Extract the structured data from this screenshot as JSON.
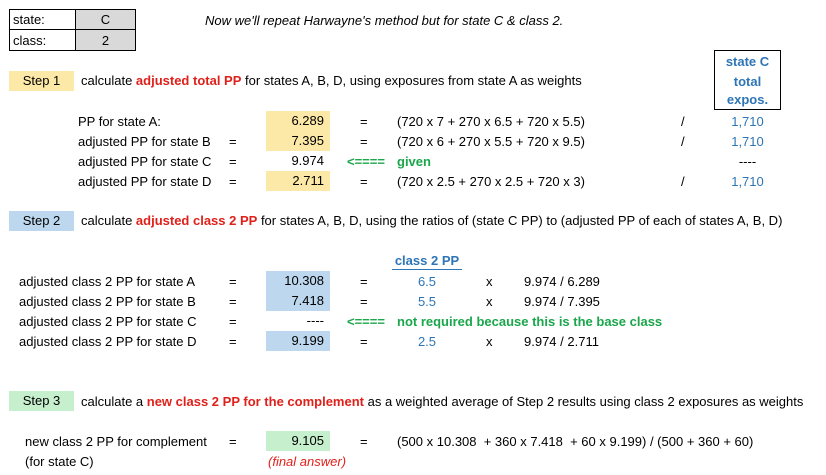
{
  "info_box": {
    "state_label": "state:",
    "state_value": "C",
    "class_label": "class:",
    "class_value": "2"
  },
  "intro": "Now we'll repeat Harwayne's method but for state C & class 2.",
  "exposure_header": [
    "state C",
    "total",
    "expos."
  ],
  "step1": {
    "label": "Step 1",
    "desc_pre": "calculate ",
    "desc_bold": "adjusted total PP",
    "desc_post": " for states A, B, D, using exposures from state A as weights",
    "rows": [
      {
        "label": "PP for state A:",
        "eq1": "",
        "value": "6.289",
        "eq2": "=",
        "formula": "(720 x 7 + 270 x 6.5 + 720 x 5.5)",
        "slash": "/",
        "expo": "1,710"
      },
      {
        "label": "adjusted PP for state B",
        "eq1": "=",
        "value": "7.395",
        "eq2": "=",
        "formula": "(720 x 6 + 270 x 5.5 + 720 x 9.5)",
        "slash": "/",
        "expo": "1,710"
      },
      {
        "label": "adjusted PP for state C",
        "eq1": "=",
        "value": "9.974",
        "arrow": "<====",
        "note": "given",
        "expo": "----"
      },
      {
        "label": "adjusted PP for state D",
        "eq1": "=",
        "value": "2.711",
        "eq2": "=",
        "formula": "(720 x 2.5 + 270 x 2.5 + 720 x 3)",
        "slash": "/",
        "expo": "1,710"
      }
    ]
  },
  "step2": {
    "label": "Step 2",
    "desc_pre": "calculate ",
    "desc_bold": "adjusted class 2 PP",
    "desc_post": " for states A, B, D, using the ratios of (state C PP) to (adjusted PP of each of states A, B, D)",
    "col_header": "class 2 PP",
    "rows": [
      {
        "label": "adjusted class 2 PP for state A",
        "eq1": "=",
        "value": "10.308",
        "eq2": "=",
        "pp": "6.5",
        "x": "x",
        "ratio": "9.974 / 6.289"
      },
      {
        "label": "adjusted class 2 PP for state B",
        "eq1": "=",
        "value": "7.418",
        "eq2": "=",
        "pp": "5.5",
        "x": "x",
        "ratio": "9.974 / 7.395"
      },
      {
        "label": "adjusted class 2 PP for state C",
        "eq1": "=",
        "value": "----",
        "arrow": "<====",
        "note": "not required because this is the base class"
      },
      {
        "label": "adjusted class 2 PP for state D",
        "eq1": "=",
        "value": "9.199",
        "eq2": "=",
        "pp": "2.5",
        "x": "x",
        "ratio": "9.974 / 2.711"
      }
    ]
  },
  "step3": {
    "label": "Step 3",
    "desc_pre": "calculate a ",
    "desc_bold": "new class 2 PP for the complement",
    "desc_post": " as a weighted average of Step 2 results using class 2 exposures as weights",
    "row_label": "new class 2 PP for complement",
    "row_sub": "(for state C)",
    "eq1": "=",
    "value": "9.105",
    "eq2": "=",
    "formula": "(500 x 10.308  + 360 x 7.418  + 60 x 9.199) / (500 + 360 + 60)",
    "final": "(final answer)"
  }
}
